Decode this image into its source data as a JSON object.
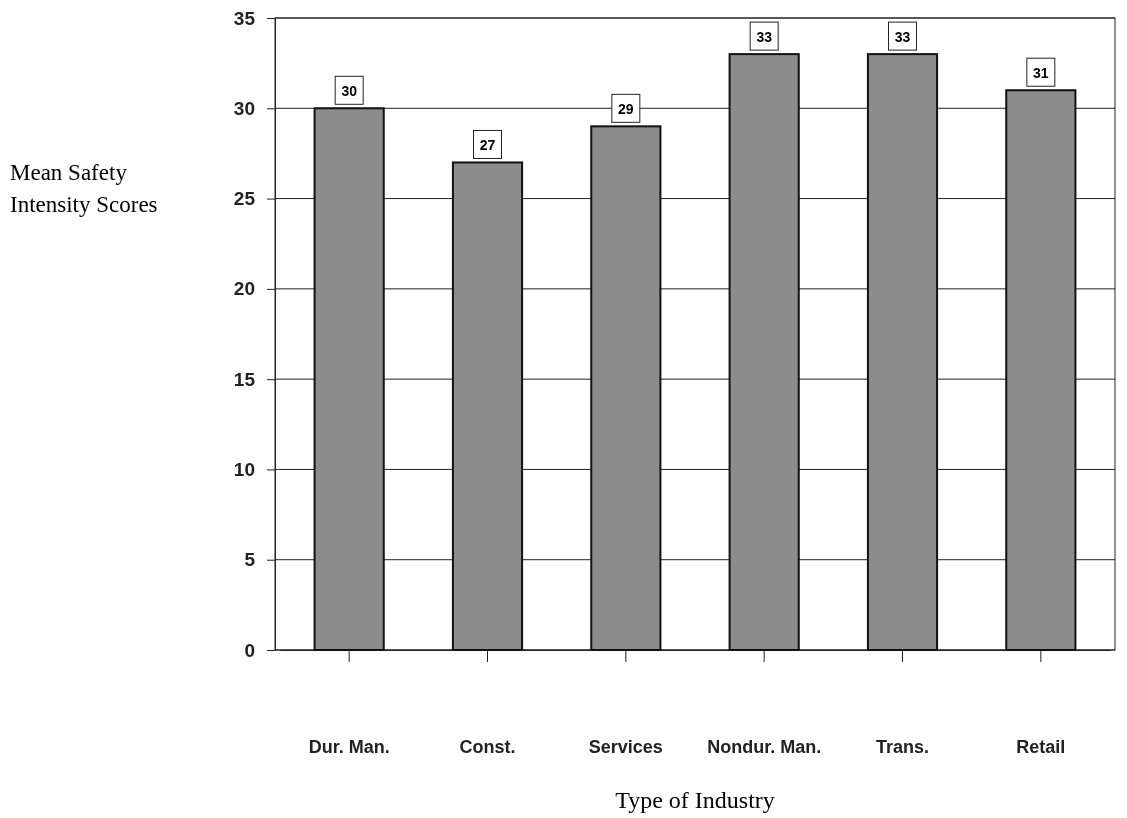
{
  "chart_data": {
    "type": "bar",
    "xlabel": "Type of Industry",
    "ylabel": "Mean Safety Intensity Scores",
    "categories": [
      "Dur. Man.",
      "Const.",
      "Services",
      "Nondur. Man.",
      "Trans.",
      "Retail"
    ],
    "values": [
      30,
      27,
      29,
      33,
      33,
      31
    ],
    "color": "#8c8c8c",
    "ylim": [
      0,
      35
    ],
    "yticks": [
      0,
      5,
      10,
      15,
      20,
      25,
      30,
      35
    ],
    "grid": "y",
    "data_labels": true
  }
}
